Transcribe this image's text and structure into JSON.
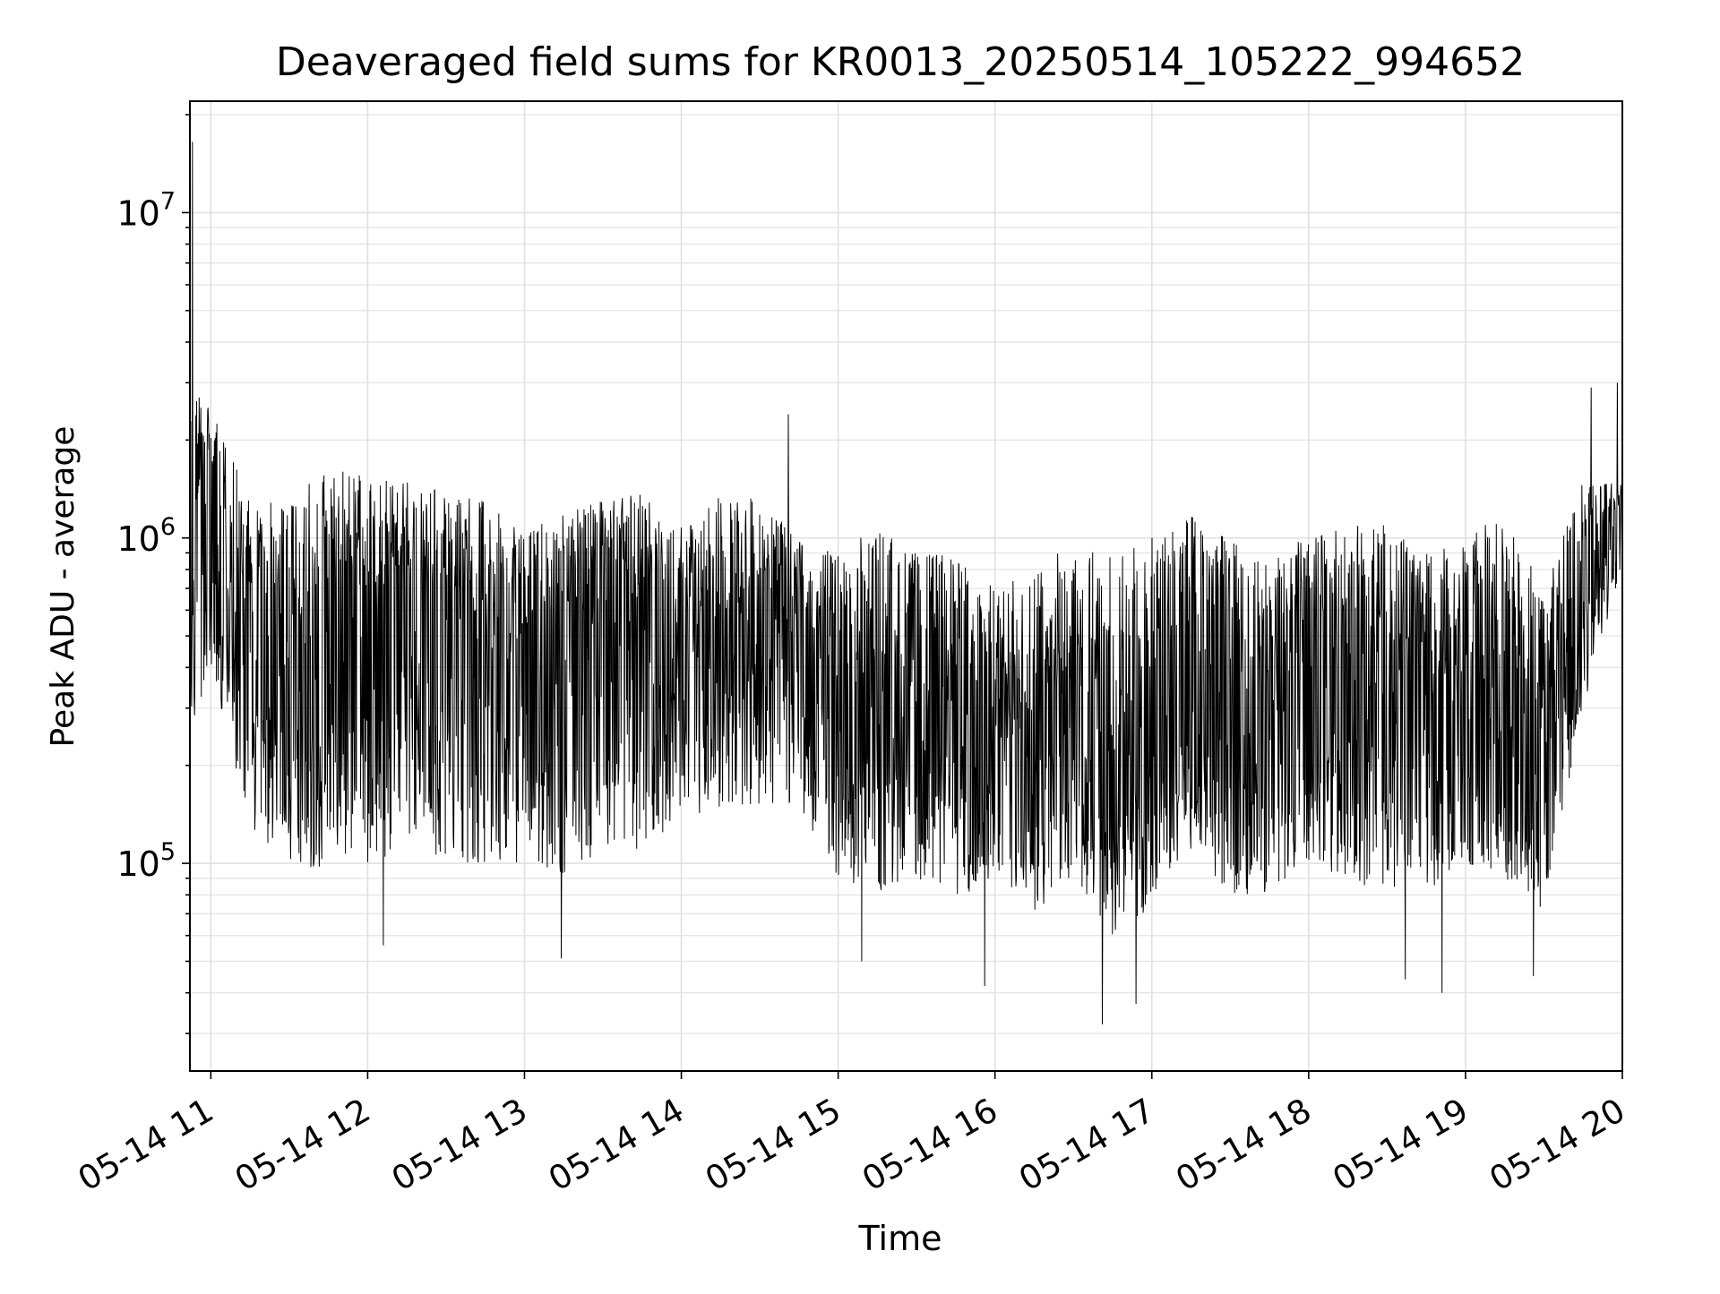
{
  "chart_data": {
    "type": "line",
    "title": "Deaveraged field sums for KR0013_20250514_105222_994652",
    "xlabel": "Time",
    "ylabel": "Peak ADU - average",
    "yscale": "log",
    "grid": true,
    "legend": "none",
    "xlim": [
      "2025-05-14 10:52",
      "2025-05-14 20:00"
    ],
    "ylim": [
      23000,
      22000000
    ],
    "x_ticks": [
      {
        "value": "2025-05-14 11:00",
        "label": "05-14 11"
      },
      {
        "value": "2025-05-14 12:00",
        "label": "05-14 12"
      },
      {
        "value": "2025-05-14 13:00",
        "label": "05-14 13"
      },
      {
        "value": "2025-05-14 14:00",
        "label": "05-14 14"
      },
      {
        "value": "2025-05-14 15:00",
        "label": "05-14 15"
      },
      {
        "value": "2025-05-14 16:00",
        "label": "05-14 16"
      },
      {
        "value": "2025-05-14 17:00",
        "label": "05-14 17"
      },
      {
        "value": "2025-05-14 18:00",
        "label": "05-14 18"
      },
      {
        "value": "2025-05-14 19:00",
        "label": "05-14 19"
      },
      {
        "value": "2025-05-14 20:00",
        "label": "05-14 20"
      }
    ],
    "y_ticks": [
      {
        "value": 100000,
        "base": "10",
        "exp": "5"
      },
      {
        "value": 1000000,
        "base": "10",
        "exp": "6"
      },
      {
        "value": 10000000,
        "base": "10",
        "exp": "7"
      }
    ],
    "series": [
      {
        "color": "#000000",
        "envelope": {
          "x": [
            "2025-05-14 10:52",
            "2025-05-14 11:00",
            "2025-05-14 11:15",
            "2025-05-14 11:30",
            "2025-05-14 11:45",
            "2025-05-14 12:00",
            "2025-05-14 12:15",
            "2025-05-14 12:30",
            "2025-05-14 12:45",
            "2025-05-14 13:00",
            "2025-05-14 13:15",
            "2025-05-14 13:30",
            "2025-05-14 13:45",
            "2025-05-14 14:00",
            "2025-05-14 14:15",
            "2025-05-14 14:30",
            "2025-05-14 14:45",
            "2025-05-14 15:00",
            "2025-05-14 15:15",
            "2025-05-14 15:30",
            "2025-05-14 15:45",
            "2025-05-14 16:00",
            "2025-05-14 16:15",
            "2025-05-14 16:30",
            "2025-05-14 16:45",
            "2025-05-14 17:00",
            "2025-05-14 17:15",
            "2025-05-14 17:30",
            "2025-05-14 17:45",
            "2025-05-14 18:00",
            "2025-05-14 18:15",
            "2025-05-14 18:30",
            "2025-05-14 18:45",
            "2025-05-14 19:00",
            "2025-05-14 19:15",
            "2025-05-14 19:30",
            "2025-05-14 19:45",
            "2025-05-14 20:00"
          ],
          "high": [
            3000000,
            2500000,
            1300000,
            1400000,
            1600000,
            1600000,
            1500000,
            1400000,
            1300000,
            1100000,
            1200000,
            1300000,
            1400000,
            1100000,
            1400000,
            1300000,
            1000000,
            900000,
            1100000,
            900000,
            900000,
            700000,
            800000,
            1000000,
            900000,
            1000000,
            1200000,
            1000000,
            900000,
            1000000,
            1100000,
            1100000,
            900000,
            1000000,
            1200000,
            700000,
            1500000,
            1500000
          ],
          "low": [
            250000,
            400000,
            130000,
            100000,
            90000,
            100000,
            110000,
            100000,
            100000,
            100000,
            90000,
            110000,
            110000,
            130000,
            150000,
            150000,
            150000,
            90000,
            80000,
            90000,
            80000,
            80000,
            70000,
            90000,
            60000,
            70000,
            110000,
            80000,
            80000,
            100000,
            90000,
            80000,
            80000,
            100000,
            90000,
            70000,
            300000,
            800000
          ],
          "typical": [
            900000,
            1500000,
            500000,
            350000,
            450000,
            550000,
            500000,
            450000,
            400000,
            400000,
            450000,
            600000,
            600000,
            500000,
            550000,
            550000,
            450000,
            300000,
            280000,
            260000,
            250000,
            220000,
            220000,
            280000,
            180000,
            220000,
            350000,
            300000,
            300000,
            320000,
            330000,
            320000,
            300000,
            300000,
            300000,
            200000,
            700000,
            1300000
          ]
        },
        "spikes": [
          {
            "x": "2025-05-14 10:53",
            "y": 16500000
          },
          {
            "x": "2025-05-14 10:52",
            "y": 3200000
          },
          {
            "x": "2025-05-14 14:41",
            "y": 2400000
          },
          {
            "x": "2025-05-14 19:48",
            "y": 2900000
          },
          {
            "x": "2025-05-14 19:58",
            "y": 3000000
          },
          {
            "x": "2025-05-14 16:41",
            "y": 32000
          },
          {
            "x": "2025-05-14 15:56",
            "y": 42000
          },
          {
            "x": "2025-05-14 16:54",
            "y": 37000
          },
          {
            "x": "2025-05-14 18:51",
            "y": 40000
          },
          {
            "x": "2025-05-14 18:37",
            "y": 44000
          },
          {
            "x": "2025-05-14 19:26",
            "y": 45000
          },
          {
            "x": "2025-05-14 15:09",
            "y": 50000
          },
          {
            "x": "2025-05-14 13:14",
            "y": 51000
          },
          {
            "x": "2025-05-14 12:06",
            "y": 56000
          }
        ]
      }
    ]
  }
}
